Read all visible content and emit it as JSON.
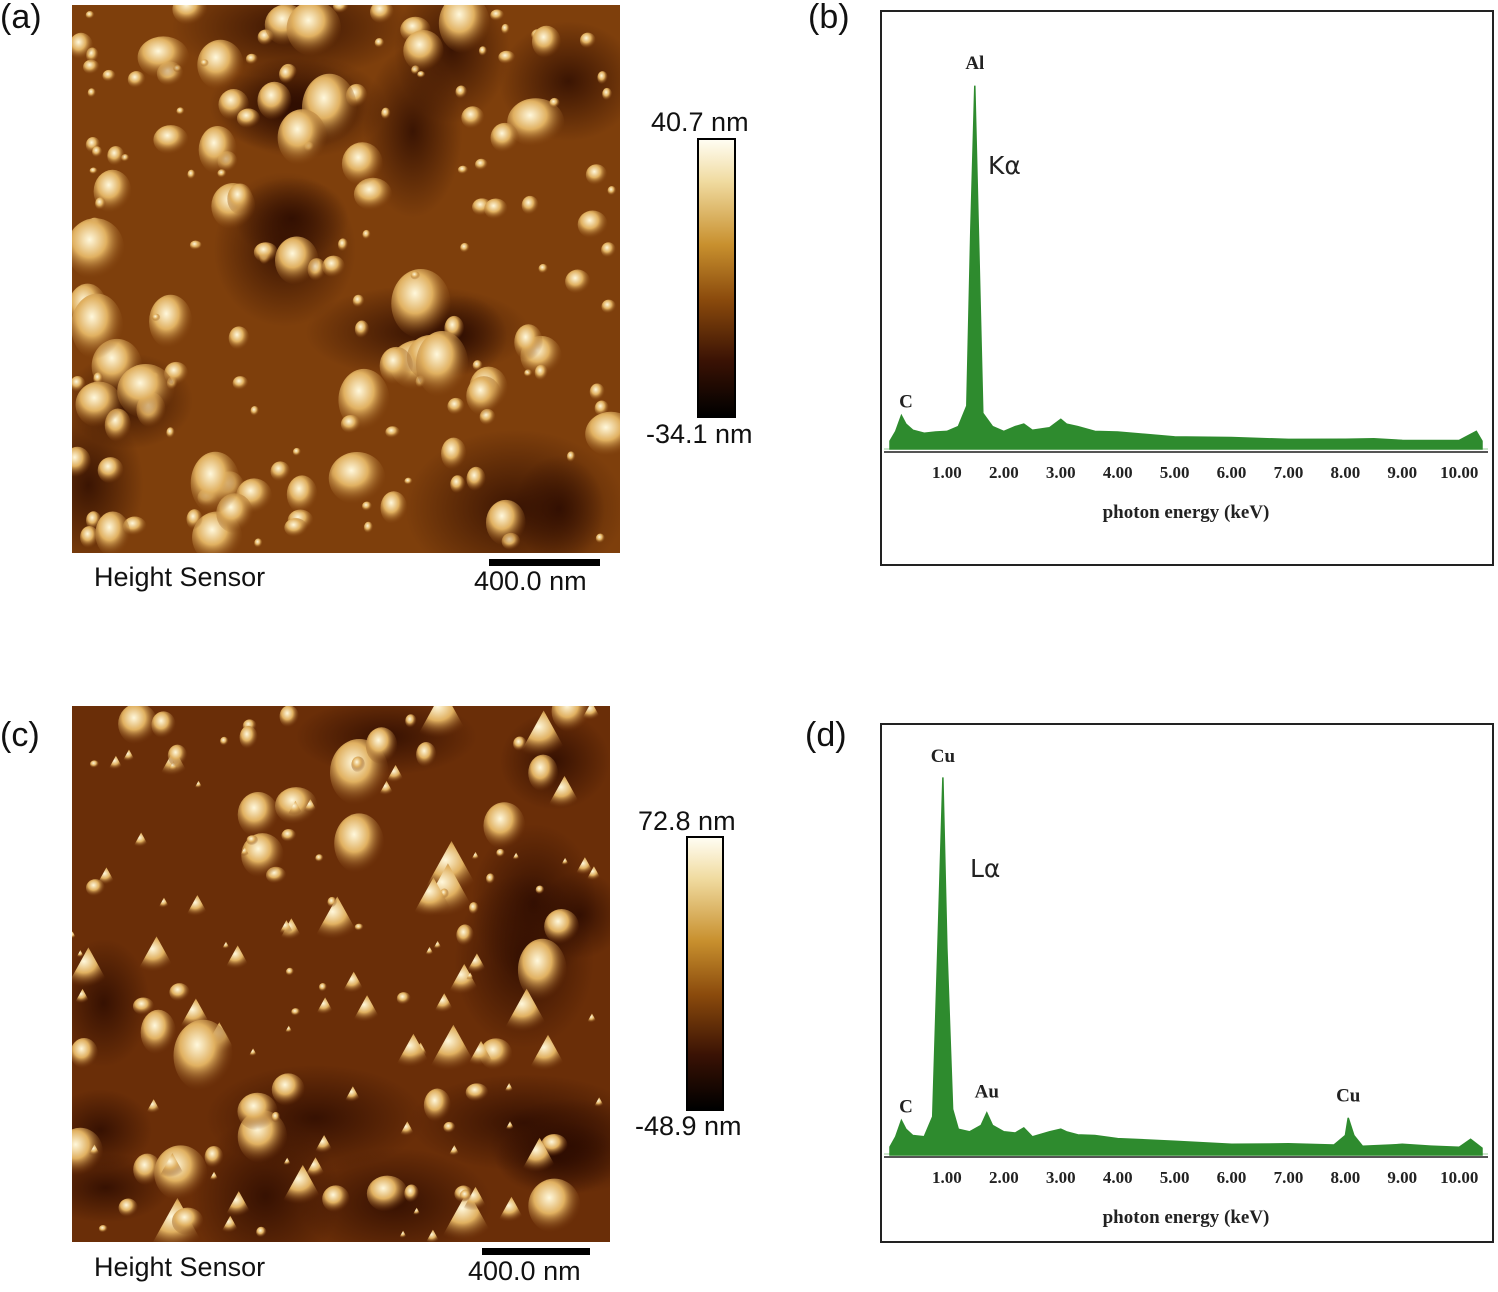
{
  "panels": {
    "a": {
      "label": "(a)",
      "caption": "Height Sensor",
      "scalebar": "400.0 nm",
      "colorbar_max": "40.7 nm",
      "colorbar_min": "-34.1 nm"
    },
    "b": {
      "label": "(b)"
    },
    "c": {
      "label": "(c)",
      "caption": "Height Sensor",
      "scalebar": "400.0 nm",
      "colorbar_max": "72.8 nm",
      "colorbar_min": "-48.9 nm"
    },
    "d": {
      "label": "(d)"
    }
  },
  "colors": {
    "spectrum_fill": "#2e8b2e",
    "afm_dark": "#1a0800",
    "afm_mid": "#7a3a0a",
    "afm_light": "#f5ecc8"
  },
  "chart_data": [
    {
      "type": "area",
      "panel": "b",
      "xlabel": "photon energy (keV)",
      "ylabel": "",
      "xlim": [
        0,
        10.4
      ],
      "xticks": [
        "1.00",
        "2.00",
        "3.00",
        "4.00",
        "5.00",
        "6.00",
        "7.00",
        "8.00",
        "9.00",
        "10.00"
      ],
      "peak_labels": [
        {
          "text": "C",
          "x": 0.28
        },
        {
          "text": "Al",
          "x": 1.49
        }
      ],
      "annotation": "Kα",
      "x": [
        0.0,
        0.1,
        0.2,
        0.28,
        0.4,
        0.6,
        0.8,
        1.0,
        1.2,
        1.35,
        1.42,
        1.49,
        1.56,
        1.63,
        1.8,
        2.0,
        2.2,
        2.35,
        2.5,
        2.8,
        3.0,
        3.1,
        3.3,
        3.6,
        4.0,
        5.0,
        6.0,
        7.0,
        8.0,
        8.5,
        9.0,
        9.5,
        10.0,
        10.3,
        10.4
      ],
      "y": [
        2,
        5,
        9,
        7,
        5,
        4.5,
        4.5,
        5,
        6,
        12,
        60,
        100,
        55,
        10,
        6,
        5,
        6,
        7,
        5,
        6,
        8,
        7,
        6,
        5,
        4.5,
        3.5,
        3,
        2.8,
        2.5,
        3,
        2.2,
        2.5,
        2.2,
        5,
        2
      ]
    },
    {
      "type": "area",
      "panel": "d",
      "xlabel": "photon energy (keV)",
      "ylabel": "",
      "xlim": [
        0,
        10.4
      ],
      "xticks": [
        "1.00",
        "2.00",
        "3.00",
        "4.00",
        "5.00",
        "6.00",
        "7.00",
        "8.00",
        "9.00",
        "10.00"
      ],
      "peak_labels": [
        {
          "text": "C",
          "x": 0.28
        },
        {
          "text": "Cu",
          "x": 0.93
        },
        {
          "text": "Au",
          "x": 1.7
        },
        {
          "text": "Cu",
          "x": 8.05
        }
      ],
      "annotation": "Lα",
      "x": [
        0.0,
        0.1,
        0.2,
        0.28,
        0.4,
        0.6,
        0.75,
        0.85,
        0.93,
        1.0,
        1.1,
        1.2,
        1.4,
        1.6,
        1.7,
        1.8,
        2.0,
        2.2,
        2.35,
        2.5,
        2.8,
        3.0,
        3.1,
        3.3,
        3.6,
        4.0,
        5.0,
        6.0,
        7.0,
        7.8,
        8.0,
        8.05,
        8.15,
        8.3,
        8.8,
        9.0,
        9.5,
        10.0,
        10.2,
        10.4
      ],
      "y": [
        2,
        5,
        9,
        7,
        5,
        5,
        10,
        60,
        100,
        55,
        12,
        7,
        6,
        8,
        11,
        8,
        6,
        6,
        7,
        5,
        6,
        7,
        6,
        5.5,
        5,
        4.5,
        3.5,
        3,
        2.8,
        2.8,
        5,
        10,
        5,
        2.5,
        2.5,
        3,
        2.2,
        2.2,
        4,
        2
      ]
    }
  ]
}
